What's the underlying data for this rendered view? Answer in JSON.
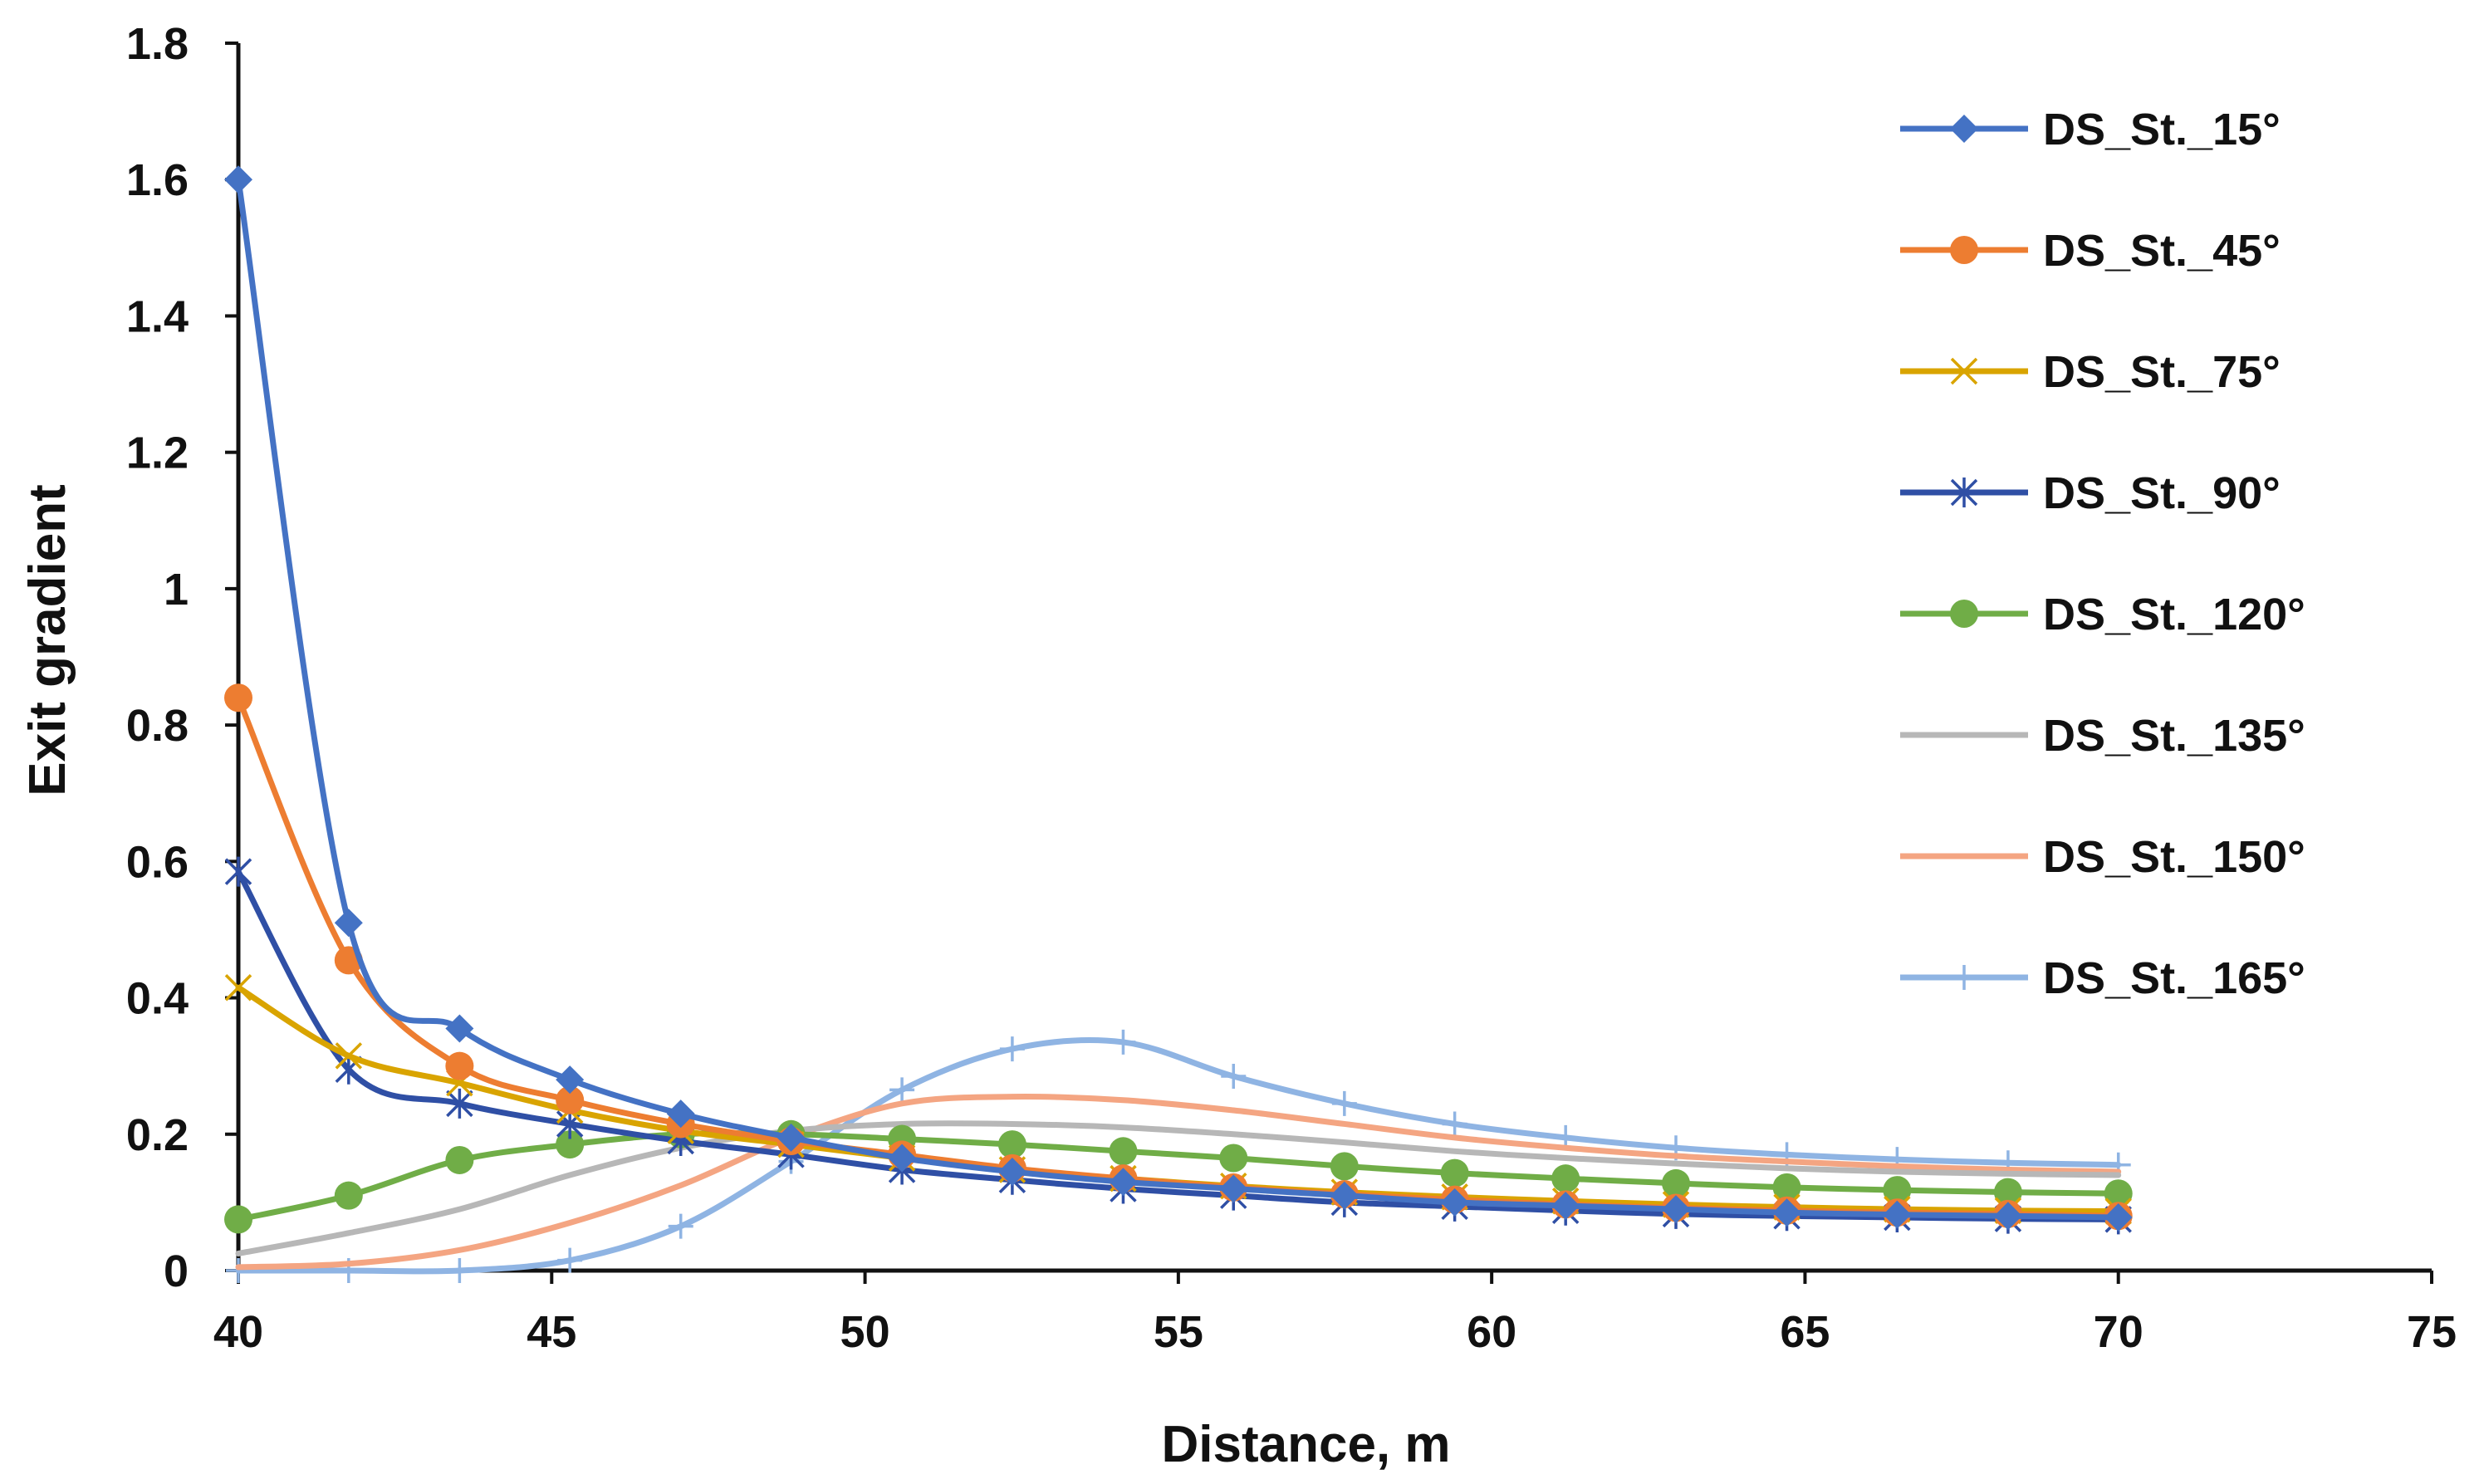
{
  "chart_data": {
    "type": "line",
    "title": "",
    "xlabel": "Distance, m",
    "ylabel": "Exit gradient",
    "xlim": [
      40,
      75
    ],
    "ylim": [
      0,
      1.8
    ],
    "x_ticks": [
      40,
      45,
      50,
      55,
      60,
      65,
      70,
      75
    ],
    "y_ticks": [
      0,
      0.2,
      0.4,
      0.6,
      0.8,
      1,
      1.2,
      1.4,
      1.6,
      1.8
    ],
    "y_tick_labels": [
      "0",
      "0.2",
      "0.4",
      "0.6",
      "0.8",
      "1",
      "1.2",
      "1.4",
      "1.6",
      "1.8"
    ],
    "legend_position": "right",
    "grid": false,
    "x": [
      40,
      41.76,
      43.53,
      45.29,
      47.06,
      48.82,
      50.59,
      52.35,
      54.12,
      55.88,
      57.65,
      59.41,
      61.18,
      62.94,
      64.71,
      66.47,
      68.24,
      70
    ],
    "series": [
      {
        "name": "DS_St._15°",
        "color": "#4472C4",
        "marker": "diamond",
        "values": [
          1.6,
          0.51,
          0.355,
          0.28,
          0.23,
          0.195,
          0.165,
          0.145,
          0.13,
          0.12,
          0.11,
          0.1,
          0.095,
          0.09,
          0.085,
          0.082,
          0.08,
          0.078
        ]
      },
      {
        "name": "DS_St._45°",
        "color": "#ED7D31",
        "marker": "circle",
        "values": [
          0.84,
          0.455,
          0.3,
          0.25,
          0.215,
          0.19,
          0.17,
          0.15,
          0.135,
          0.122,
          0.112,
          0.104,
          0.097,
          0.092,
          0.088,
          0.085,
          0.083,
          0.08
        ]
      },
      {
        "name": "DS_St._75°",
        "color": "#D9A400",
        "marker": "x",
        "values": [
          0.415,
          0.315,
          0.275,
          0.235,
          0.205,
          0.185,
          0.165,
          0.148,
          0.135,
          0.124,
          0.115,
          0.108,
          0.102,
          0.097,
          0.093,
          0.09,
          0.088,
          0.087
        ]
      },
      {
        "name": "DS_St._90°",
        "color": "#2F4FA5",
        "marker": "star",
        "values": [
          0.585,
          0.295,
          0.245,
          0.215,
          0.19,
          0.17,
          0.148,
          0.133,
          0.12,
          0.11,
          0.1,
          0.094,
          0.088,
          0.083,
          0.08,
          0.078,
          0.076,
          0.075
        ]
      },
      {
        "name": "DS_St._120°",
        "color": "#70AD47",
        "marker": "circle",
        "values": [
          0.075,
          0.11,
          0.162,
          0.185,
          0.2,
          0.2,
          0.193,
          0.185,
          0.175,
          0.165,
          0.153,
          0.143,
          0.135,
          0.128,
          0.122,
          0.118,
          0.115,
          0.113
        ]
      },
      {
        "name": "DS_St._135°",
        "color": "#B7B7B7",
        "marker": "none",
        "values": [
          0.025,
          0.055,
          0.09,
          0.14,
          0.18,
          0.205,
          0.215,
          0.215,
          0.21,
          0.2,
          0.188,
          0.175,
          0.165,
          0.157,
          0.15,
          0.145,
          0.142,
          0.14
        ]
      },
      {
        "name": "DS_St._150°",
        "color": "#F4A582",
        "marker": "none",
        "values": [
          0.005,
          0.01,
          0.03,
          0.07,
          0.125,
          0.195,
          0.245,
          0.255,
          0.25,
          0.235,
          0.215,
          0.195,
          0.18,
          0.168,
          0.16,
          0.153,
          0.148,
          0.145
        ]
      },
      {
        "name": "DS_St._165°",
        "color": "#8FB4E3",
        "marker": "plus",
        "values": [
          0.0,
          0.0,
          0.0,
          0.015,
          0.065,
          0.16,
          0.265,
          0.325,
          0.335,
          0.285,
          0.245,
          0.215,
          0.195,
          0.18,
          0.17,
          0.163,
          0.158,
          0.155
        ]
      }
    ]
  }
}
